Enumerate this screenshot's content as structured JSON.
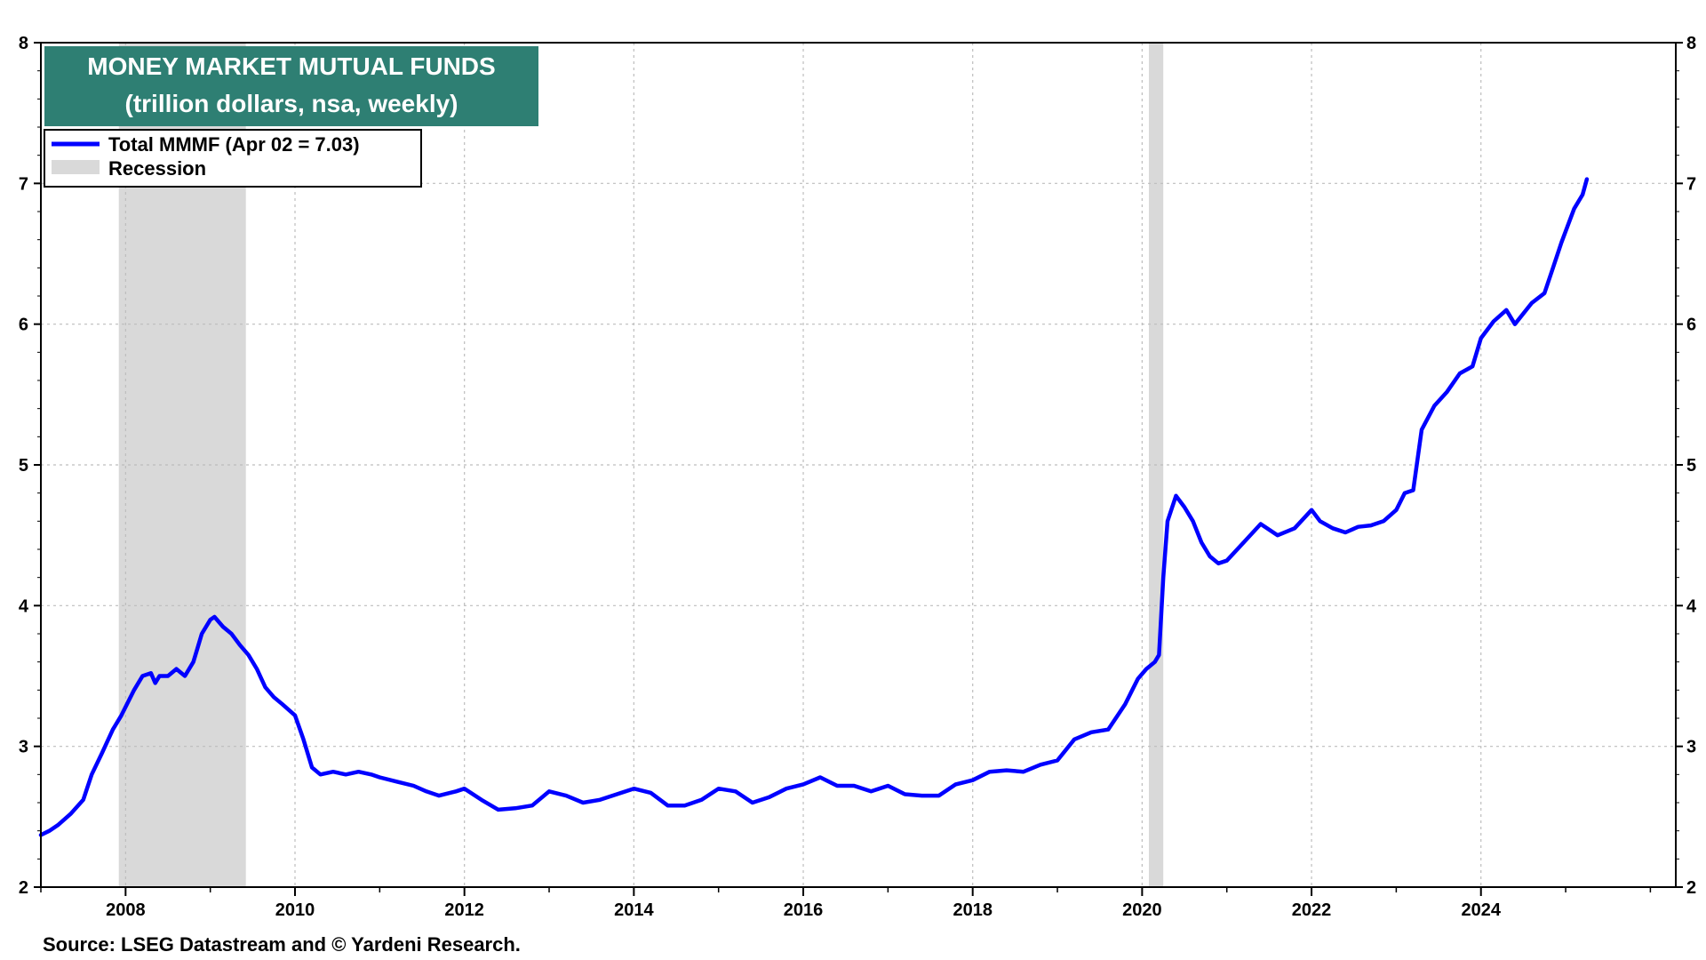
{
  "chart_data": {
    "type": "line",
    "title": "MONEY MARKET MUTUAL FUNDS",
    "subtitle": "(trillion dollars, nsa, weekly)",
    "source": "Source: LSEG Datastream and © Yardeni Research.",
    "xlabel": "",
    "ylabel": "",
    "xlim": [
      2007.0,
      2026.3
    ],
    "ylim": [
      2,
      8
    ],
    "x_ticks": [
      "2008",
      "2010",
      "2012",
      "2014",
      "2016",
      "2018",
      "2020",
      "2022",
      "2024"
    ],
    "x_tick_values": [
      2008,
      2010,
      2012,
      2014,
      2016,
      2018,
      2020,
      2022,
      2024
    ],
    "y_ticks": [
      "2",
      "3",
      "4",
      "5",
      "6",
      "7",
      "8"
    ],
    "y_tick_values": [
      2,
      3,
      4,
      5,
      6,
      7,
      8
    ],
    "grid": true,
    "legend_position": "top-left",
    "legend": [
      {
        "label": "Total MMMF (Apr 02 = 7.03)",
        "kind": "line",
        "color": "#0000ff"
      },
      {
        "label": "Recession",
        "kind": "area",
        "color": "#d9d9d9"
      }
    ],
    "recessions": [
      {
        "start": 2007.92,
        "end": 2009.42
      },
      {
        "start": 2020.08,
        "end": 2020.25
      }
    ],
    "series": [
      {
        "name": "Total MMMF",
        "color": "#0000ff",
        "x": [
          2007.0,
          2007.1,
          2007.2,
          2007.35,
          2007.5,
          2007.6,
          2007.72,
          2007.85,
          2007.95,
          2008.1,
          2008.2,
          2008.3,
          2008.35,
          2008.4,
          2008.5,
          2008.6,
          2008.7,
          2008.8,
          2008.85,
          2008.9,
          2009.0,
          2009.05,
          2009.15,
          2009.25,
          2009.35,
          2009.45,
          2009.55,
          2009.65,
          2009.75,
          2009.85,
          2010.0,
          2010.1,
          2010.2,
          2010.3,
          2010.45,
          2010.6,
          2010.75,
          2010.9,
          2011.0,
          2011.2,
          2011.4,
          2011.55,
          2011.7,
          2011.9,
          2012.0,
          2012.2,
          2012.4,
          2012.6,
          2012.8,
          2013.0,
          2013.2,
          2013.4,
          2013.6,
          2013.8,
          2014.0,
          2014.2,
          2014.4,
          2014.6,
          2014.8,
          2015.0,
          2015.2,
          2015.4,
          2015.6,
          2015.8,
          2016.0,
          2016.2,
          2016.4,
          2016.6,
          2016.8,
          2017.0,
          2017.2,
          2017.4,
          2017.6,
          2017.8,
          2018.0,
          2018.2,
          2018.4,
          2018.6,
          2018.8,
          2019.0,
          2019.2,
          2019.4,
          2019.6,
          2019.8,
          2019.95,
          2020.05,
          2020.15,
          2020.2,
          2020.25,
          2020.3,
          2020.4,
          2020.5,
          2020.6,
          2020.7,
          2020.8,
          2020.9,
          2021.0,
          2021.2,
          2021.4,
          2021.6,
          2021.8,
          2022.0,
          2022.1,
          2022.25,
          2022.4,
          2022.55,
          2022.7,
          2022.85,
          2023.0,
          2023.1,
          2023.2,
          2023.3,
          2023.45,
          2023.6,
          2023.75,
          2023.9,
          2024.0,
          2024.15,
          2024.3,
          2024.4,
          2024.6,
          2024.75,
          2024.85,
          2024.95,
          2025.1,
          2025.2,
          2025.25
        ],
        "values": [
          2.37,
          2.4,
          2.44,
          2.52,
          2.62,
          2.8,
          2.95,
          3.12,
          3.22,
          3.4,
          3.5,
          3.52,
          3.45,
          3.5,
          3.5,
          3.55,
          3.5,
          3.6,
          3.7,
          3.8,
          3.9,
          3.92,
          3.85,
          3.8,
          3.72,
          3.65,
          3.55,
          3.42,
          3.35,
          3.3,
          3.22,
          3.05,
          2.85,
          2.8,
          2.82,
          2.8,
          2.82,
          2.8,
          2.78,
          2.75,
          2.72,
          2.68,
          2.65,
          2.68,
          2.7,
          2.62,
          2.55,
          2.56,
          2.58,
          2.68,
          2.65,
          2.6,
          2.62,
          2.66,
          2.7,
          2.67,
          2.58,
          2.58,
          2.62,
          2.7,
          2.68,
          2.6,
          2.64,
          2.7,
          2.73,
          2.78,
          2.72,
          2.72,
          2.68,
          2.72,
          2.66,
          2.65,
          2.65,
          2.73,
          2.76,
          2.82,
          2.83,
          2.82,
          2.87,
          2.9,
          3.05,
          3.1,
          3.12,
          3.3,
          3.48,
          3.55,
          3.6,
          3.65,
          4.2,
          4.6,
          4.78,
          4.7,
          4.6,
          4.45,
          4.35,
          4.3,
          4.32,
          4.45,
          4.58,
          4.5,
          4.55,
          4.68,
          4.6,
          4.55,
          4.52,
          4.56,
          4.57,
          4.6,
          4.68,
          4.8,
          4.82,
          5.25,
          5.42,
          5.52,
          5.65,
          5.7,
          5.9,
          6.02,
          6.1,
          6.0,
          6.15,
          6.22,
          6.4,
          6.58,
          6.82,
          6.92,
          7.03
        ]
      }
    ]
  }
}
